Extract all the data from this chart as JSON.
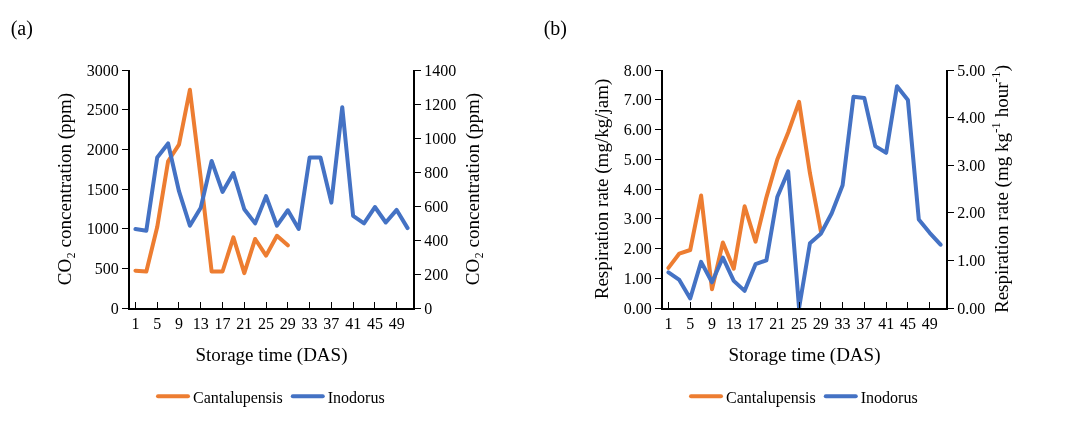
{
  "chart_data": [
    {
      "type": "line",
      "title": "(a)",
      "xlabel": "Storage time (DAS)",
      "ylabel": "CO₂ concentration (ppm)",
      "y2label": "CO₂ concentration (ppm)",
      "categories": [
        "1",
        null,
        "5",
        null,
        "9",
        null,
        "13",
        null,
        "17",
        null,
        "21",
        null,
        "25",
        null,
        "29",
        null,
        "33",
        null,
        "37",
        null,
        "41",
        null,
        "45",
        null,
        "49",
        null
      ],
      "series": [
        {
          "name": "Cantalupensis",
          "color": "#ed7d31",
          "values": [
            470,
            460,
            1020,
            1850,
            2060,
            2750,
            1640,
            460,
            460,
            890,
            440,
            870,
            660,
            910,
            790,
            null,
            null,
            null,
            null,
            null,
            null,
            null,
            null,
            null,
            null,
            null
          ]
        },
        {
          "name": "Inodorus",
          "color": "#4472c4",
          "axis": "y2",
          "values": [
            465,
            455,
            885,
            968,
            687,
            484,
            590,
            865,
            683,
            794,
            581,
            498,
            658,
            484,
            575,
            465,
            885,
            885,
            620,
            1181,
            542,
            498,
            594,
            503,
            577,
            470
          ]
        }
      ],
      "ylim": [
        0,
        3000
      ],
      "yticks": [
        0,
        500,
        1000,
        1500,
        2000,
        2500,
        3000
      ],
      "y2lim": [
        0,
        1400
      ],
      "y2ticks": [
        0,
        200,
        400,
        600,
        800,
        1000,
        1200,
        1400
      ],
      "grid": false,
      "legend": "bottom",
      "marker": "none",
      "line_style": "solid"
    },
    {
      "type": "line",
      "title": "(b)",
      "xlabel": "Storage time (DAS)",
      "ylabel": "Respiration rate (mg/kg/jam)",
      "y2label": "Respiration rate (mg kg$^{-1}$ hour$^{-1}$)",
      "categories": [
        "1",
        null,
        "5",
        null,
        "9",
        null,
        "13",
        null,
        "17",
        null,
        "21",
        null,
        "25",
        null,
        "29",
        null,
        "33",
        null,
        "37",
        null,
        "41",
        null,
        "45",
        null,
        "49",
        null
      ],
      "series": [
        {
          "name": "Cantalupensis",
          "color": "#ed7d31",
          "values": [
            1.35,
            1.83,
            1.95,
            3.78,
            0.63,
            2.2,
            1.32,
            3.42,
            2.23,
            3.72,
            4.99,
            5.9,
            6.93,
            4.53,
            2.58,
            null,
            null,
            null,
            null,
            null,
            null,
            null,
            null,
            null,
            null,
            null
          ]
        },
        {
          "name": "Inodorus",
          "color": "#4472c4",
          "axis": "y2",
          "values": [
            0.75,
            0.59,
            0.2,
            0.97,
            0.54,
            1.06,
            0.57,
            0.36,
            0.92,
            1.0,
            2.33,
            2.87,
            0.0,
            1.36,
            1.56,
            1.99,
            2.58,
            4.44,
            4.41,
            3.4,
            3.26,
            4.66,
            4.37,
            1.86,
            1.58,
            1.33
          ]
        }
      ],
      "ylim": [
        0,
        8
      ],
      "yticks": [
        {
          "value": 0,
          "label": "0.00"
        },
        {
          "value": 1,
          "label": "1.00"
        },
        {
          "value": 2,
          "label": "2.00"
        },
        {
          "value": 3,
          "label": "3.00"
        },
        {
          "value": 4,
          "label": "4.00"
        },
        {
          "value": 5,
          "label": "5.00"
        },
        {
          "value": 6,
          "label": "6.00"
        },
        {
          "value": 7,
          "label": "7.00"
        },
        {
          "value": 8,
          "label": "8.00"
        }
      ],
      "y2lim": [
        0,
        5
      ],
      "y2ticks": [
        {
          "value": 0,
          "label": "0.00"
        },
        {
          "value": 1,
          "label": "1.00"
        },
        {
          "value": 2,
          "label": "2.00"
        },
        {
          "value": 3,
          "label": "3.00"
        },
        {
          "value": 4,
          "label": "4.00"
        },
        {
          "value": 5,
          "label": "5.00"
        }
      ],
      "grid": false,
      "legend": "bottom",
      "marker": "none",
      "line_style": "solid"
    }
  ]
}
